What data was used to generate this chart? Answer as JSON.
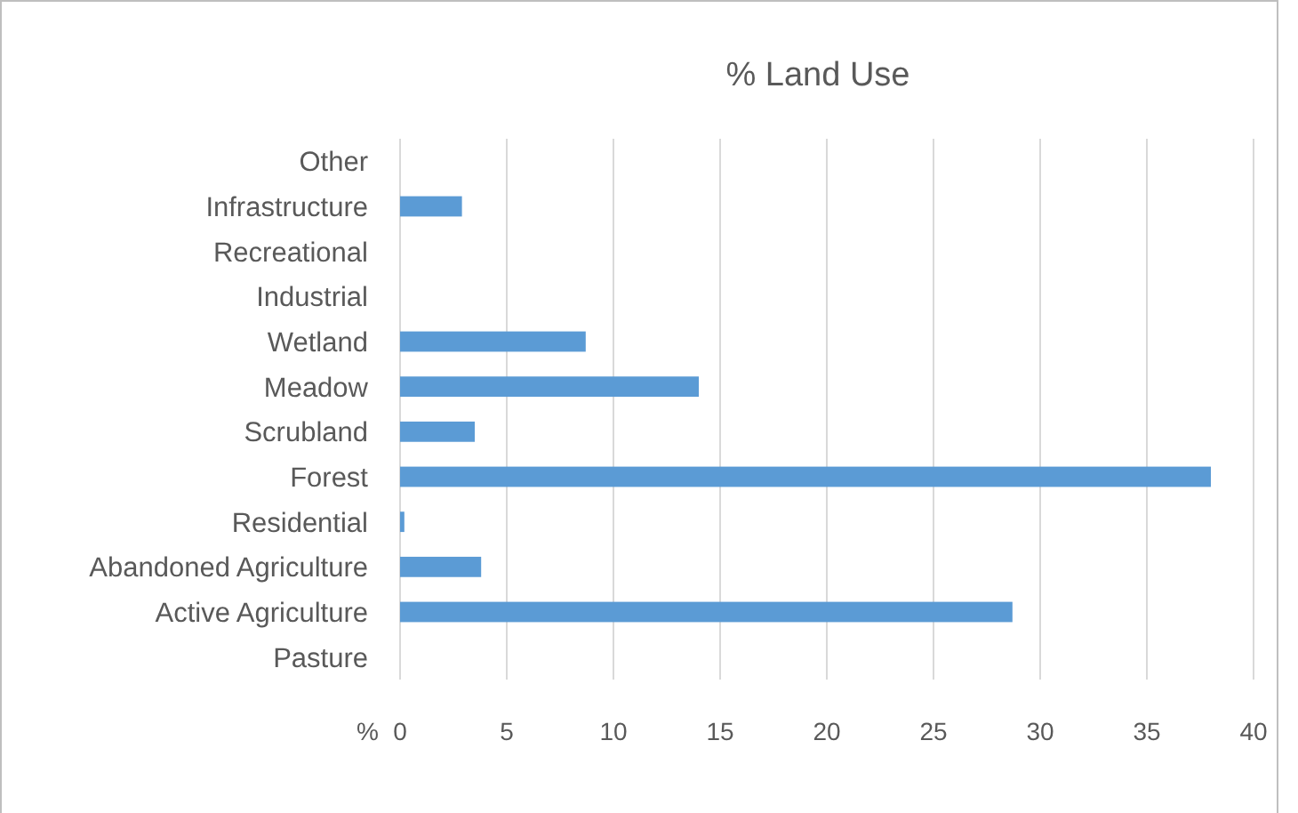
{
  "chart_data": {
    "type": "bar",
    "orientation": "horizontal",
    "title": "% Land Use",
    "xlabel": "%",
    "categories": [
      "Other",
      "Infrastructure",
      "Recreational",
      "Industrial",
      "Wetland",
      "Meadow",
      "Scrubland",
      "Forest",
      "Residential",
      "Abandoned Agriculture",
      "Active Agriculture",
      "Pasture"
    ],
    "values": [
      0,
      2.9,
      0,
      0,
      8.7,
      14.0,
      3.5,
      38.0,
      0.2,
      3.8,
      28.7,
      0
    ],
    "color": "#5b9bd5",
    "xlim": [
      0,
      40
    ],
    "xticks": [
      0,
      5,
      10,
      15,
      20,
      25,
      30,
      35,
      40
    ],
    "grid": "x"
  }
}
